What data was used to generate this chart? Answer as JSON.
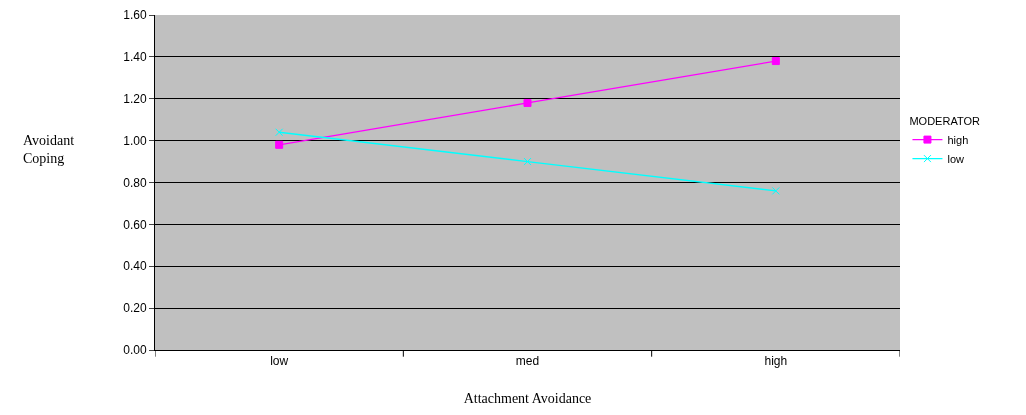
{
  "chart_data": {
    "type": "line",
    "xlabel": "Attachment Avoidance",
    "ylabel": "Avoidant Coping",
    "legend_title": "MODERATOR",
    "categories": [
      "low",
      "med",
      "high"
    ],
    "series": [
      {
        "name": "high",
        "color": "#ff00ff",
        "marker": "square",
        "values": [
          0.98,
          1.18,
          1.38
        ]
      },
      {
        "name": "low",
        "color": "#00ffff",
        "marker": "cross",
        "values": [
          1.04,
          0.9,
          0.76
        ]
      }
    ],
    "ylim": [
      0,
      1.6
    ],
    "yticks": [
      {
        "value": 0,
        "label": "0.00"
      },
      {
        "value": 0.2,
        "label": "0.20"
      },
      {
        "value": 0.4,
        "label": "0.40"
      },
      {
        "value": 0.6,
        "label": "0.60"
      },
      {
        "value": 0.8,
        "label": "0.80"
      },
      {
        "value": 1,
        "label": "1.00"
      },
      {
        "value": 1.2,
        "label": "1.20"
      },
      {
        "value": 1.4,
        "label": "1.40"
      },
      {
        "value": 1.6,
        "label": "1.60"
      }
    ],
    "grid": "y",
    "legend": "right"
  }
}
